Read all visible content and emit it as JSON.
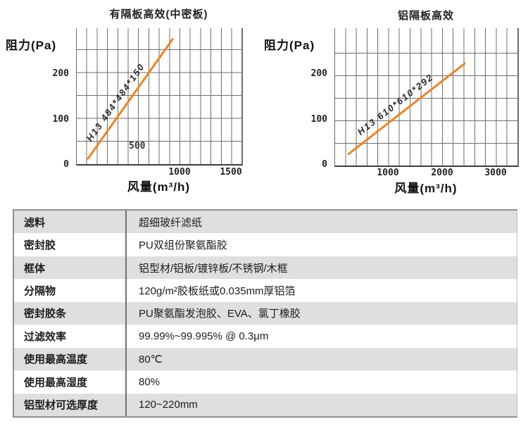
{
  "page": {
    "background": "#ffffff",
    "accent_orange": "#f0821e",
    "grid_color": "#6e6e6e",
    "row_stripe_color": "#dfdfdf"
  },
  "charts": [
    {
      "title": "有隔板高效(中密板)",
      "y_axis_label": "阻力(Pa)",
      "x_axis_label": "风量(m³/h)",
      "y_ticks": [
        "200",
        "100"
      ],
      "origin_label": "0",
      "x_ticks": [
        "1000",
        "1500"
      ],
      "inner_label": "500",
      "series_label": "H13 484*484*150",
      "line_color": "#f0821e"
    },
    {
      "title": "铝隔板高效",
      "y_axis_label": "阻力(Pa)",
      "x_axis_label": "风量(m³/h)",
      "y_ticks": [
        "200",
        "100"
      ],
      "origin_label": "0",
      "x_ticks": [
        "1000",
        "2000",
        "3000"
      ],
      "series_label": "H13 610*610*292",
      "line_color": "#f0821e"
    }
  ],
  "chart_data": [
    {
      "type": "line",
      "title": "有隔板高效(中密板)",
      "xlabel": "风量(m³/h)",
      "ylabel": "阻力(Pa)",
      "xlim": [
        0,
        1600
      ],
      "ylim": [
        0,
        300
      ],
      "x_ticks": [
        0,
        500,
        1000,
        1500
      ],
      "y_ticks": [
        0,
        100,
        200
      ],
      "grid": true,
      "legend_position": "on-line",
      "series": [
        {
          "name": "H13 484*484*150",
          "x": [
            100,
            950
          ],
          "y": [
            10,
            270
          ],
          "color": "#f0821e"
        }
      ]
    },
    {
      "type": "line",
      "title": "铝隔板高效",
      "xlabel": "风量(m³/h)",
      "ylabel": "阻力(Pa)",
      "xlim": [
        0,
        3400
      ],
      "ylim": [
        0,
        300
      ],
      "x_ticks": [
        0,
        1000,
        2000,
        3000
      ],
      "y_ticks": [
        0,
        100,
        200
      ],
      "grid": true,
      "legend_position": "on-line",
      "series": [
        {
          "name": "H13 610*610*292",
          "x": [
            250,
            2470
          ],
          "y": [
            25,
            225
          ],
          "color": "#f0821e"
        }
      ]
    }
  ],
  "table": {
    "rows": [
      {
        "label": "滤料",
        "value": "超细玻纤滤纸"
      },
      {
        "label": "密封胶",
        "value": "PU双组份聚氨酯胶"
      },
      {
        "label": "框体",
        "value": "铝型材/铝板/镀锌板/不锈钢/木框"
      },
      {
        "label": "分隔物",
        "value": "120g/m²胶板纸或0.035mm厚铝箔"
      },
      {
        "label": "密封胶条",
        "value": "PU聚氨酯发泡胶、EVA、氯丁橡胶"
      },
      {
        "label": "过滤效率",
        "value": "99.99%~99.995% @ 0.3μm"
      },
      {
        "label": "使用最高温度",
        "value": "80℃"
      },
      {
        "label": "使用最高湿度",
        "value": "80%"
      },
      {
        "label": "铝型材可选厚度",
        "value": "120~220mm"
      }
    ]
  }
}
